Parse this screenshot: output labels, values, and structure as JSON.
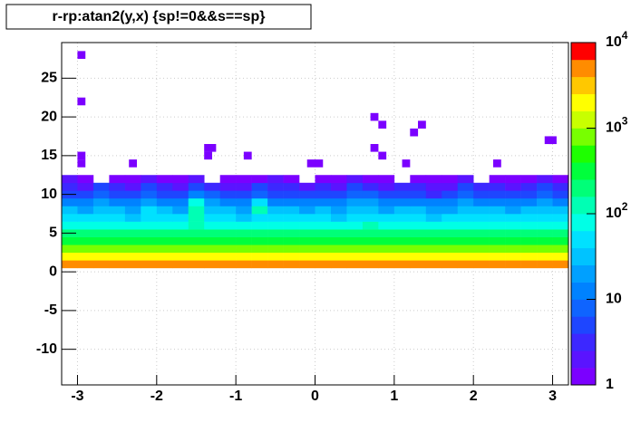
{
  "chart_data": {
    "type": "heatmap",
    "title": "r-rp:atan2(y,x) {sp!=0&&s==sp}",
    "xlim": [
      -3.2,
      3.2
    ],
    "ylim": [
      -14.6,
      29.6
    ],
    "xticks": [
      -3,
      -2,
      -1,
      0,
      1,
      2,
      3
    ],
    "yticks": [
      -10,
      -5,
      0,
      5,
      10,
      15,
      20,
      25
    ],
    "zlim": [
      1,
      10000
    ],
    "zlog": true,
    "zticks": [
      {
        "value": 1,
        "label": "1"
      },
      {
        "value": 10,
        "label": "10"
      },
      {
        "value": 100,
        "label": "10",
        "exponent": "2"
      },
      {
        "value": 1000,
        "label": "10",
        "exponent": "3"
      },
      {
        "value": 10000,
        "label": "10",
        "exponent": "4"
      }
    ],
    "grid": true,
    "palette": [
      "#7b00ff",
      "#5a14ff",
      "#3c28ff",
      "#1e46ff",
      "#0f64ff",
      "#0082ff",
      "#00a0ff",
      "#00c3ff",
      "#00e1ff",
      "#00ffe6",
      "#00ffb4",
      "#00ff78",
      "#00ff3c",
      "#1eff00",
      "#78ff00",
      "#c8ff00",
      "#ffff00",
      "#ffc800",
      "#ff8c00",
      "#ff0000"
    ],
    "x_edges": [
      -3.2,
      -3.0,
      -2.8,
      -2.6,
      -2.4,
      -2.2,
      -2.0,
      -1.8,
      -1.6,
      -1.4,
      -1.2,
      -1.0,
      -0.8,
      -0.6,
      -0.4,
      -0.2,
      0,
      0.2,
      0.4,
      0.6,
      0.8,
      1.0,
      1.2,
      1.4,
      1.6,
      1.8,
      2.0,
      2.2,
      2.4,
      2.6,
      2.8,
      3.0,
      3.2
    ],
    "y_edges": [
      0.5,
      1.5,
      2.5,
      3.5,
      4.5,
      5.5,
      6.5,
      7.5,
      8.5,
      9.5,
      10.5,
      11.5,
      12.5
    ],
    "z": [
      [
        5200,
        5400,
        5100,
        5300,
        5000,
        5500,
        5200,
        5100,
        5400,
        5300,
        5200,
        5000,
        5300,
        5400,
        5100,
        5200,
        5300,
        5100,
        5400,
        5200,
        5000,
        5300,
        5200,
        5400,
        5100,
        5300,
        5200,
        5000,
        5400,
        5300,
        5100,
        5200
      ],
      [
        2100,
        1900,
        2200,
        2000,
        1800,
        2100,
        2000,
        1900,
        2200,
        2000,
        1950,
        2100,
        2000,
        1900,
        2050,
        2100,
        2000,
        1900,
        2150,
        2000,
        1900,
        2100,
        2000,
        1950,
        2100,
        2000,
        1900,
        2050,
        2000,
        2100,
        1900,
        2000
      ],
      [
        700,
        650,
        720,
        680,
        640,
        700,
        690,
        660,
        710,
        680,
        650,
        700,
        670,
        690,
        720,
        660,
        700,
        640,
        690,
        710,
        670,
        650,
        700,
        680,
        660,
        720,
        690,
        650,
        700,
        670,
        680,
        700
      ],
      [
        360,
        340,
        370,
        350,
        330,
        360,
        340,
        350,
        380,
        360,
        340,
        330,
        350,
        370,
        360,
        340,
        350,
        330,
        360,
        370,
        340,
        350,
        360,
        330,
        350,
        370,
        340,
        360,
        350,
        340,
        360,
        350
      ],
      [
        180,
        170,
        190,
        175,
        165,
        185,
        170,
        180,
        190,
        175,
        170,
        165,
        180,
        185,
        170,
        175,
        180,
        165,
        185,
        190,
        170,
        175,
        180,
        165,
        175,
        185,
        170,
        180,
        175,
        170,
        185,
        180
      ],
      [
        90,
        85,
        95,
        80,
        75,
        95,
        85,
        90,
        100,
        85,
        80,
        75,
        90,
        95,
        85,
        80,
        90,
        75,
        95,
        100,
        85,
        80,
        90,
        75,
        85,
        95,
        80,
        90,
        85,
        80,
        95,
        90
      ],
      [
        50,
        45,
        55,
        40,
        35,
        60,
        45,
        50,
        150,
        55,
        40,
        35,
        50,
        45,
        55,
        40,
        45,
        35,
        55,
        50,
        45,
        40,
        50,
        35,
        45,
        55,
        40,
        50,
        45,
        40,
        55,
        50
      ],
      [
        30,
        25,
        35,
        28,
        22,
        40,
        30,
        25,
        130,
        35,
        28,
        22,
        120,
        30,
        28,
        25,
        30,
        22,
        35,
        30,
        25,
        28,
        30,
        22,
        25,
        35,
        28,
        30,
        25,
        28,
        35,
        30
      ],
      [
        15,
        12,
        18,
        14,
        10,
        20,
        15,
        12,
        80,
        16,
        14,
        10,
        60,
        15,
        14,
        12,
        15,
        10,
        18,
        16,
        12,
        14,
        15,
        10,
        12,
        18,
        14,
        15,
        12,
        14,
        18,
        15
      ],
      [
        6,
        5,
        8,
        5,
        4,
        9,
        6,
        5,
        10,
        7,
        5,
        4,
        8,
        6,
        5,
        5,
        6,
        4,
        8,
        7,
        5,
        5,
        6,
        3,
        5,
        8,
        5,
        6,
        5,
        5,
        8,
        6
      ],
      [
        3,
        2,
        4,
        3,
        2,
        4,
        3,
        2,
        5,
        3,
        2,
        2,
        4,
        3,
        3,
        2,
        3,
        2,
        4,
        3,
        2,
        3,
        3,
        2,
        2,
        4,
        3,
        3,
        2,
        3,
        4,
        3
      ],
      [
        2,
        1,
        null,
        1,
        1,
        2,
        1,
        1,
        2,
        null,
        1,
        1,
        1,
        2,
        1,
        null,
        1,
        1,
        2,
        1,
        1,
        null,
        1,
        1,
        1,
        2,
        null,
        1,
        1,
        1,
        2,
        1
      ]
    ],
    "points": {
      "x": [
        -2.95,
        -2.95,
        -2.95,
        -2.95,
        -2.3,
        -1.35,
        -1.3,
        -1.35,
        -0.85,
        0.75,
        0.85,
        1.35,
        1.25,
        0.75,
        0.85,
        2.95,
        3.0,
        -0.05,
        1.15,
        2.3,
        0.05
      ],
      "y": [
        28,
        22,
        15,
        14,
        14,
        16,
        16,
        15,
        15,
        20,
        19,
        19,
        18,
        16,
        15,
        17,
        17,
        14,
        14,
        14,
        14
      ],
      "z": [
        1,
        1,
        1,
        1,
        1,
        1,
        1,
        1,
        1,
        1,
        1,
        1,
        1,
        1,
        1,
        1,
        1,
        1,
        1,
        1,
        1
      ]
    }
  }
}
